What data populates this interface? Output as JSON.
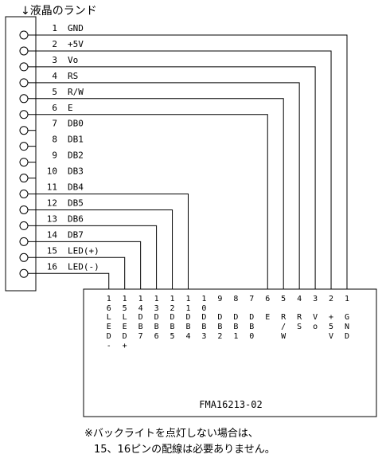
{
  "title": "↓液晶のランド",
  "pins": [
    {
      "number": 1,
      "name": "GND",
      "connected": true
    },
    {
      "number": 2,
      "name": "+5V",
      "connected": true
    },
    {
      "number": 3,
      "name": "Vo",
      "connected": true
    },
    {
      "number": 4,
      "name": "RS",
      "connected": true
    },
    {
      "number": 5,
      "name": "R/W",
      "connected": true
    },
    {
      "number": 6,
      "name": "E",
      "connected": true
    },
    {
      "number": 7,
      "name": "DB0",
      "connected": false
    },
    {
      "number": 8,
      "name": "DB1",
      "connected": false
    },
    {
      "number": 9,
      "name": "DB2",
      "connected": false
    },
    {
      "number": 10,
      "name": "DB3",
      "connected": false
    },
    {
      "number": 11,
      "name": "DB4",
      "connected": true
    },
    {
      "number": 12,
      "name": "DB5",
      "connected": true
    },
    {
      "number": 13,
      "name": "DB6",
      "connected": true
    },
    {
      "number": 14,
      "name": "DB7",
      "connected": true
    },
    {
      "number": 15,
      "name": "LED(+)",
      "connected": true
    },
    {
      "number": 16,
      "name": "LED(-)",
      "connected": true
    }
  ],
  "module": {
    "name": "FMA16213-02",
    "pins": [
      {
        "number": 16,
        "label": "LED-"
      },
      {
        "number": 15,
        "label": "LED+"
      },
      {
        "number": 14,
        "label": "DB7"
      },
      {
        "number": 13,
        "label": "DB6"
      },
      {
        "number": 12,
        "label": "DB5"
      },
      {
        "number": 11,
        "label": "DB4"
      },
      {
        "number": 10,
        "label": "DB3"
      },
      {
        "number": 9,
        "label": "DB2"
      },
      {
        "number": 8,
        "label": "DB1"
      },
      {
        "number": 7,
        "label": "DB0"
      },
      {
        "number": 6,
        "label": "E"
      },
      {
        "number": 5,
        "label": "R/W"
      },
      {
        "number": 4,
        "label": "RS"
      },
      {
        "number": 3,
        "label": "Vo"
      },
      {
        "number": 2,
        "label": "+5V"
      },
      {
        "number": 1,
        "label": "GND"
      }
    ]
  },
  "note": [
    "※バックライトを点灯しない場合は、",
    "15、16ピンの配線は必要ありません。"
  ]
}
